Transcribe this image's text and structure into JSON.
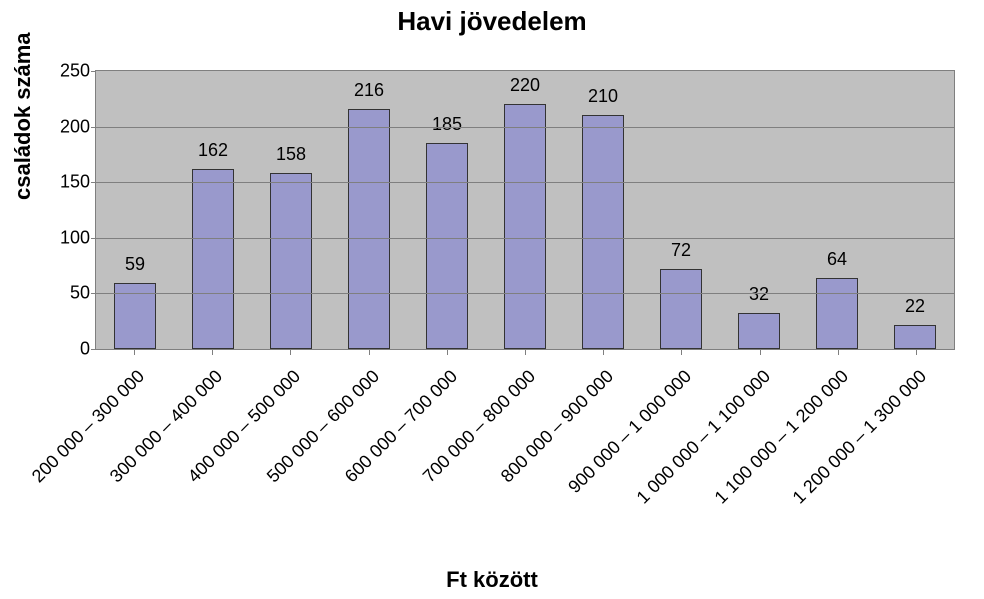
{
  "chart": {
    "type": "bar",
    "title": "Havi jövedelem",
    "title_fontsize": 26,
    "ylabel": "családok száma",
    "xlabel": "Ft között",
    "axis_label_fontsize": 22,
    "tick_fontsize": 18,
    "value_label_fontsize": 18,
    "background_color": "#c0c0c0",
    "grid_color": "#7f7f7f",
    "bar_fill": "#9999cc",
    "bar_border": "#333333",
    "bar_width": 0.55,
    "ylim": [
      0,
      250
    ],
    "ytick_step": 50,
    "yticks": [
      0,
      50,
      100,
      150,
      200,
      250
    ],
    "categories": [
      "200 000 – 300 000",
      "300 000 – 400 000",
      "400 000 – 500 000",
      "500 000 – 600 000",
      "600 000 – 700 000",
      "700 000 – 800 000",
      "800 000 – 900 000",
      "900 000 – 1 000 000",
      "1 000 000 – 1 100 000",
      "1 100 000 – 1 200 000",
      "1 200 000 – 1 300 000"
    ],
    "values": [
      59,
      162,
      158,
      216,
      185,
      220,
      210,
      72,
      32,
      64,
      22
    ]
  }
}
